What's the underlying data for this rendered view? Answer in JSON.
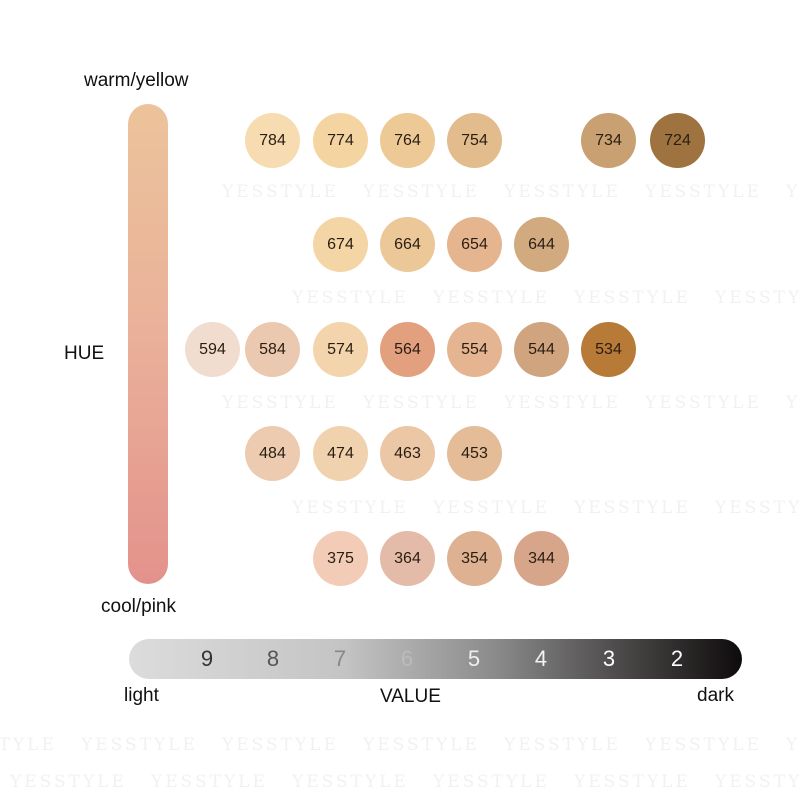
{
  "watermark": "YESSTYLE",
  "hue_axis": {
    "top_label": "warm/yellow",
    "title": "HUE",
    "bottom_label": "cool/pink"
  },
  "value_axis": {
    "ticks": [
      "9",
      "8",
      "7",
      "6",
      "5",
      "4",
      "3",
      "2"
    ],
    "left_label": "light",
    "title": "VALUE",
    "right_label": "dark"
  },
  "swatches": [
    {
      "code": "784",
      "color": "#f6dcb0"
    },
    {
      "code": "774",
      "color": "#f4d5a2"
    },
    {
      "code": "764",
      "color": "#edc996"
    },
    {
      "code": "754",
      "color": "#e2bc8c"
    },
    {
      "code": "734",
      "color": "#c9a071"
    },
    {
      "code": "724",
      "color": "#9e7340"
    },
    {
      "code": "674",
      "color": "#f3d5a6"
    },
    {
      "code": "664",
      "color": "#ecc899"
    },
    {
      "code": "654",
      "color": "#e4b58f"
    },
    {
      "code": "644",
      "color": "#d2aa80"
    },
    {
      "code": "594",
      "color": "#f1ddcf"
    },
    {
      "code": "584",
      "color": "#ebc9b0"
    },
    {
      "code": "574",
      "color": "#f3d4ac"
    },
    {
      "code": "564",
      "color": "#e3a07f"
    },
    {
      "code": "554",
      "color": "#e5b592"
    },
    {
      "code": "544",
      "color": "#d0a47f"
    },
    {
      "code": "534",
      "color": "#b87a37"
    },
    {
      "code": "484",
      "color": "#edcbb0"
    },
    {
      "code": "474",
      "color": "#f0d2ae"
    },
    {
      "code": "463",
      "color": "#ebc7a5"
    },
    {
      "code": "453",
      "color": "#e4bc97"
    },
    {
      "code": "375",
      "color": "#f3ccb7"
    },
    {
      "code": "364",
      "color": "#e4bba8"
    },
    {
      "code": "354",
      "color": "#deb192"
    },
    {
      "code": "344",
      "color": "#d7a68a"
    }
  ]
}
